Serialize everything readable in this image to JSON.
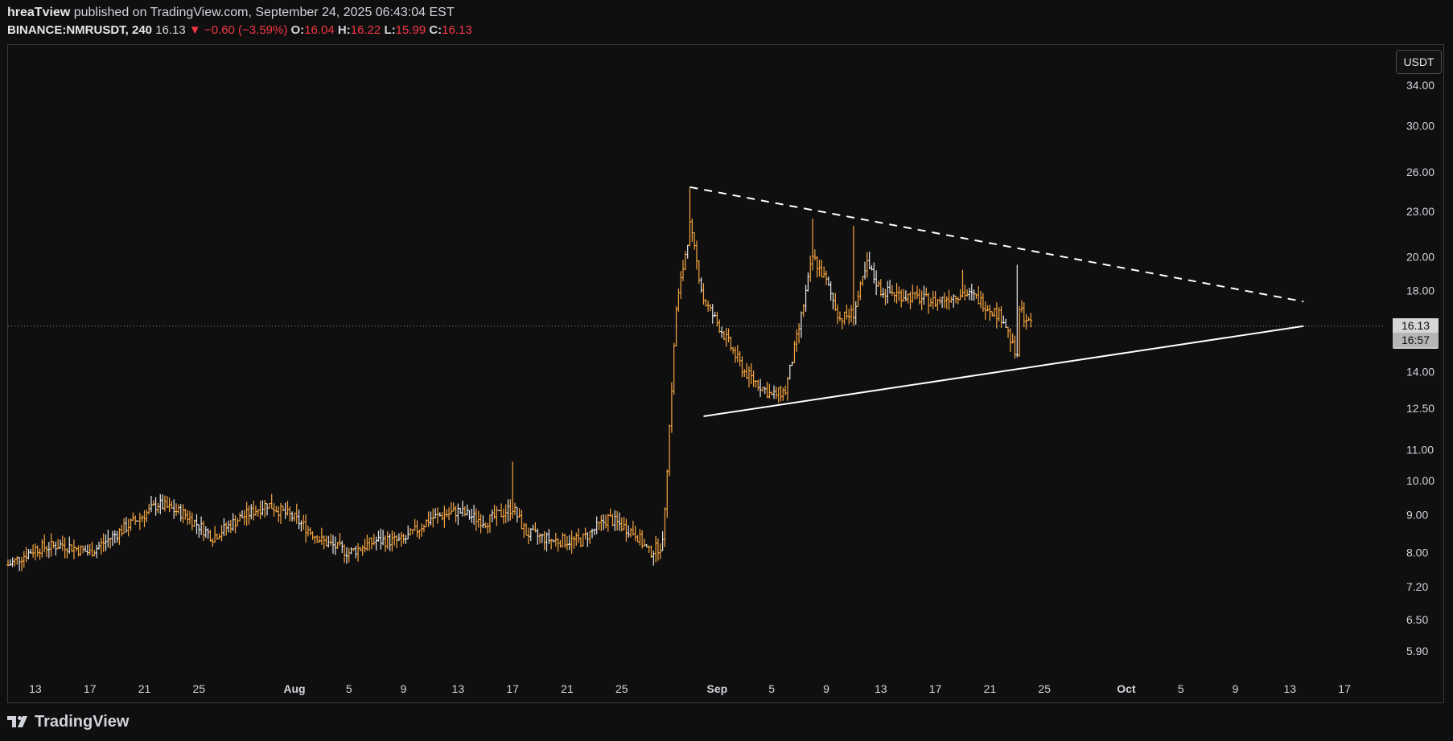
{
  "header": {
    "author": "hreaTview",
    "published_text": "published on TradingView.com, September 24, 2025 06:43:04 EST",
    "symbol": "BINANCE:NMRUSDT, 240",
    "last": "16.13",
    "change": "▼ −0.60 (−3.59%)",
    "open_label": "O:",
    "open": "16.04",
    "high_label": "H:",
    "high": "16.22",
    "low_label": "L:",
    "low": "15.99",
    "close_label": "C:",
    "close": "16.13"
  },
  "unit_button": "USDT",
  "price_tag": {
    "price": "16.13",
    "countdown": "16:57"
  },
  "footer": {
    "brand": "TradingView"
  },
  "colors": {
    "background": "#0f0f0f",
    "candle": "#f7a541",
    "candle_alt": "#e8e8e8",
    "trendline": "#ffffff",
    "down": "#f23645"
  },
  "chart_data": {
    "type": "ohlc",
    "log_scale": true,
    "current_price": 16.13,
    "y_ticks": [
      "34.00",
      "30.00",
      "26.00",
      "23.00",
      "20.00",
      "18.00",
      "14.00",
      "12.50",
      "11.00",
      "10.00",
      "9.00",
      "8.00",
      "7.20",
      "6.50",
      "5.90"
    ],
    "x_ticks": [
      "13",
      "17",
      "21",
      "25",
      "Aug",
      "5",
      "9",
      "13",
      "17",
      "21",
      "25",
      "Sep",
      "5",
      "9",
      "13",
      "17",
      "21",
      "25",
      "Oct",
      "5",
      "9",
      "13",
      "17"
    ],
    "x_range": [
      "2025-07-11",
      "2025-10-19"
    ],
    "price_path": [
      [
        "2025-07-11",
        7.7
      ],
      [
        "2025-07-13",
        8.1
      ],
      [
        "2025-07-15",
        8.2
      ],
      [
        "2025-07-17",
        8.0
      ],
      [
        "2025-07-19",
        8.5
      ],
      [
        "2025-07-21",
        9.0
      ],
      [
        "2025-07-22",
        9.3
      ],
      [
        "2025-07-24",
        9.0
      ],
      [
        "2025-07-26",
        8.4
      ],
      [
        "2025-07-28",
        8.9
      ],
      [
        "2025-07-30",
        9.3
      ],
      [
        "2025-08-01",
        8.9
      ],
      [
        "2025-08-03",
        8.3
      ],
      [
        "2025-08-05",
        8.0
      ],
      [
        "2025-08-07",
        8.3
      ],
      [
        "2025-08-09",
        8.3
      ],
      [
        "2025-08-11",
        8.9
      ],
      [
        "2025-08-13",
        9.1
      ],
      [
        "2025-08-15",
        8.8
      ],
      [
        "2025-08-17",
        9.2
      ],
      [
        "2025-08-18",
        8.5
      ],
      [
        "2025-08-20",
        8.3
      ],
      [
        "2025-08-22",
        8.3
      ],
      [
        "2025-08-24",
        8.9
      ],
      [
        "2025-08-26",
        8.5
      ],
      [
        "2025-08-27",
        8.0
      ],
      [
        "2025-08-28",
        8.2
      ],
      [
        "2025-08-29",
        17.0
      ],
      [
        "2025-08-30",
        22.0
      ],
      [
        "2025-08-31",
        17.5
      ],
      [
        "2025-09-01",
        16.3
      ],
      [
        "2025-09-03",
        14.0
      ],
      [
        "2025-09-05",
        13.0
      ],
      [
        "2025-09-06",
        13.2
      ],
      [
        "2025-09-07",
        16.0
      ],
      [
        "2025-09-08",
        20.0
      ],
      [
        "2025-09-09",
        18.5
      ],
      [
        "2025-09-10",
        16.5
      ],
      [
        "2025-09-11",
        16.8
      ],
      [
        "2025-09-12",
        19.5
      ],
      [
        "2025-09-13",
        18.0
      ],
      [
        "2025-09-15",
        17.7
      ],
      [
        "2025-09-17",
        17.4
      ],
      [
        "2025-09-19",
        17.9
      ],
      [
        "2025-09-20",
        17.6
      ],
      [
        "2025-09-22",
        16.5
      ],
      [
        "2025-09-23",
        14.5
      ],
      [
        "2025-09-23",
        17.2
      ],
      [
        "2025-09-24",
        16.13
      ]
    ],
    "notable_highs": [
      [
        "2025-08-17",
        10.6
      ],
      [
        "2025-08-30",
        24.8
      ],
      [
        "2025-09-08",
        22.5
      ],
      [
        "2025-09-11",
        22.0
      ],
      [
        "2025-09-19",
        19.2
      ],
      [
        "2025-09-23",
        19.5
      ]
    ],
    "resistance_line": {
      "style": "dashed",
      "from": [
        "2025-08-30",
        24.8
      ],
      "to": [
        "2025-10-14",
        17.4
      ]
    },
    "support_line": {
      "style": "solid",
      "from": [
        "2025-08-31",
        12.2
      ],
      "to": [
        "2025-10-14",
        16.13
      ]
    }
  }
}
